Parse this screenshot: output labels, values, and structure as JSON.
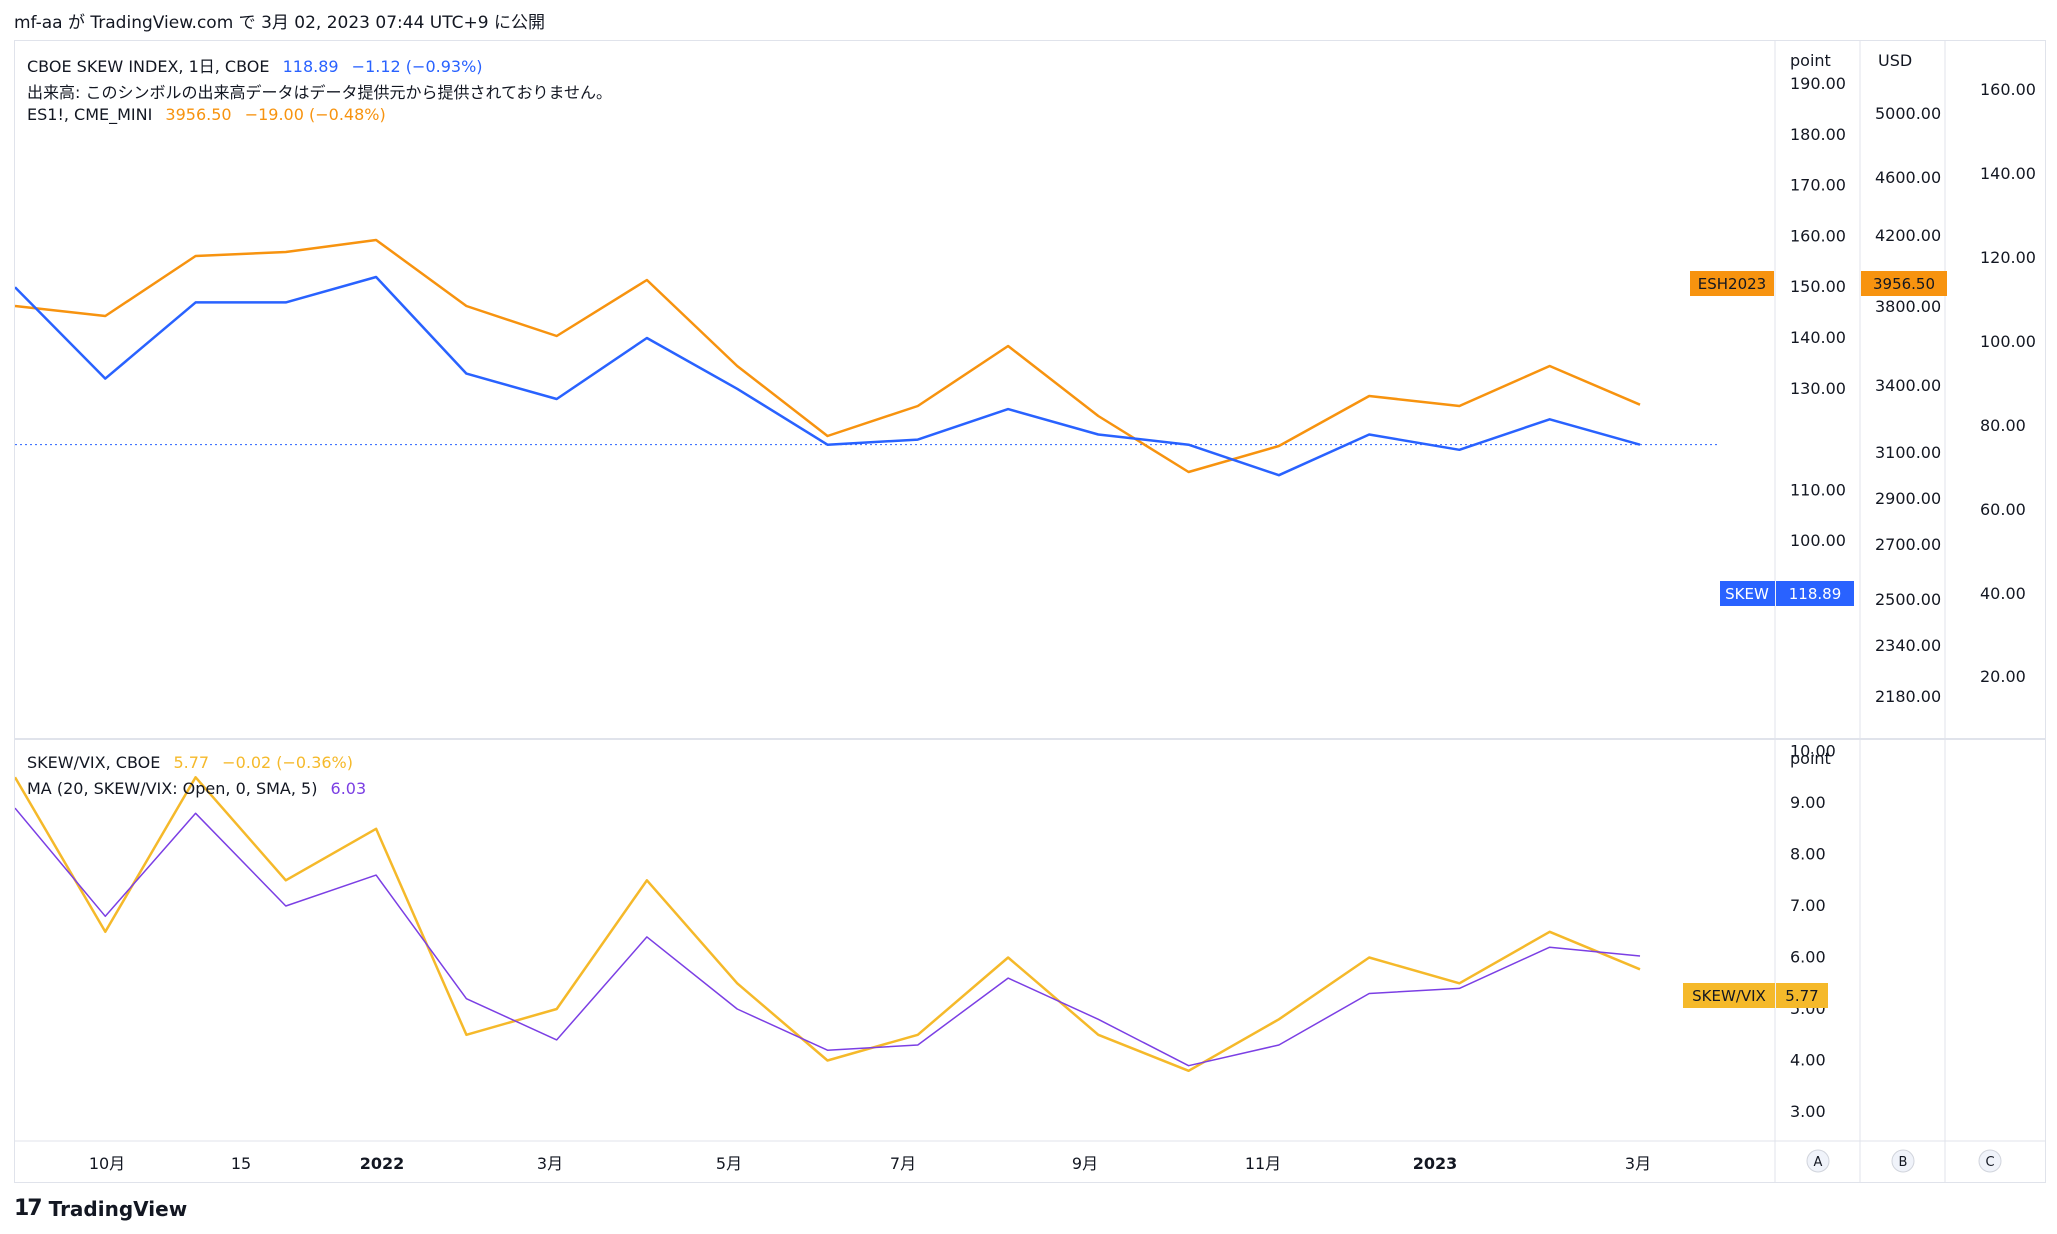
{
  "header": {
    "text": "mf-aa が TradingView.com で 3月 02, 2023 07:44 UTC+9 に公開"
  },
  "legend": {
    "skew": {
      "symbol": "CBOE SKEW INDEX, 1日, CBOE",
      "value": "118.89",
      "change": "−1.12 (−0.93%)"
    },
    "volume_note": "出来高: このシンボルの出来高データはデータ提供元から提供されておりません。",
    "es": {
      "symbol": "ES1!, CME_MINI",
      "value": "3956.50",
      "change": "−19.00 (−0.48%)"
    },
    "ratio": {
      "symbol": "SKEW/VIX, CBOE",
      "value": "5.77",
      "change": "−0.02 (−0.36%)"
    },
    "ma": {
      "symbol": "MA (20, SKEW/VIX: Open, 0, SMA, 5)",
      "value": "6.03"
    }
  },
  "scales": {
    "skew_unit": "point",
    "es_unit": "USD",
    "ratio_unit": "point",
    "skew_ticks": [
      "190.00",
      "180.00",
      "170.00",
      "160.00",
      "150.00",
      "140.00",
      "130.00",
      "110.00",
      "100.00"
    ],
    "es_ticks": [
      "5000.00",
      "4600.00",
      "4200.00",
      "3800.00",
      "3400.00",
      "3100.00",
      "2900.00",
      "2700.00",
      "2500.00",
      "2340.00",
      "2180.00"
    ],
    "c_ticks": [
      "160.00",
      "140.00",
      "120.00",
      "100.00",
      "80.00",
      "60.00",
      "40.00",
      "20.00"
    ],
    "ratio_ticks": [
      "10.00",
      "9.00",
      "8.00",
      "7.00",
      "6.00",
      "5.00",
      "4.00",
      "3.00"
    ],
    "bottom_buttons": [
      "A",
      "B",
      "C"
    ]
  },
  "labels": {
    "es_tag": "ESH2023",
    "es_price": "3956.50",
    "skew_tag": "SKEW",
    "skew_price": "118.89",
    "ratio_tag": "SKEW/VIX",
    "ratio_price": "5.77"
  },
  "time_axis": [
    "10月",
    "15",
    "2022",
    "3月",
    "5月",
    "7月",
    "9月",
    "11月",
    "2023",
    "3月"
  ],
  "footer": {
    "brand": "TradingView"
  },
  "colors": {
    "skew": "#2962ff",
    "es": "#f7930f",
    "ratio": "#f5b92a",
    "ma": "#7b3fe4"
  },
  "chart_data": [
    {
      "type": "line",
      "x": [
        "2021-09",
        "2021-10",
        "2021-11",
        "2021-12",
        "2022-01",
        "2022-02",
        "2022-03",
        "2022-04",
        "2022-05",
        "2022-06",
        "2022-07",
        "2022-08",
        "2022-09",
        "2022-10",
        "2022-11",
        "2022-12",
        "2023-01",
        "2023-02",
        "2023-03"
      ],
      "series": [
        {
          "name": "SKEW",
          "values": [
            150,
            132,
            147,
            147,
            152,
            133,
            128,
            140,
            130,
            119,
            120,
            126,
            121,
            119,
            113,
            121,
            118,
            124,
            119
          ]
        },
        {
          "name": "ES1!",
          "values": [
            4450,
            4400,
            4700,
            4720,
            4780,
            4450,
            4300,
            4580,
            4150,
            3800,
            3950,
            4250,
            3900,
            3620,
            3750,
            4000,
            3950,
            4150,
            3956.5
          ]
        }
      ]
    },
    {
      "type": "line",
      "x": [
        "2021-09",
        "2021-10",
        "2021-11",
        "2021-12",
        "2022-01",
        "2022-02",
        "2022-03",
        "2022-04",
        "2022-05",
        "2022-06",
        "2022-07",
        "2022-08",
        "2022-09",
        "2022-10",
        "2022-11",
        "2022-12",
        "2023-01",
        "2023-02",
        "2023-03"
      ],
      "series": [
        {
          "name": "SKEW/VIX",
          "values": [
            9.5,
            6.5,
            9.5,
            7.5,
            8.5,
            4.5,
            5.0,
            7.5,
            5.5,
            4.0,
            4.5,
            6.0,
            4.5,
            3.8,
            4.8,
            6.0,
            5.5,
            6.5,
            5.77
          ]
        },
        {
          "name": "MA",
          "values": [
            8.9,
            6.8,
            8.8,
            7.0,
            7.6,
            5.2,
            4.4,
            6.4,
            5.0,
            4.2,
            4.3,
            5.6,
            4.8,
            3.9,
            4.3,
            5.3,
            5.4,
            6.2,
            6.03
          ]
        }
      ]
    }
  ]
}
